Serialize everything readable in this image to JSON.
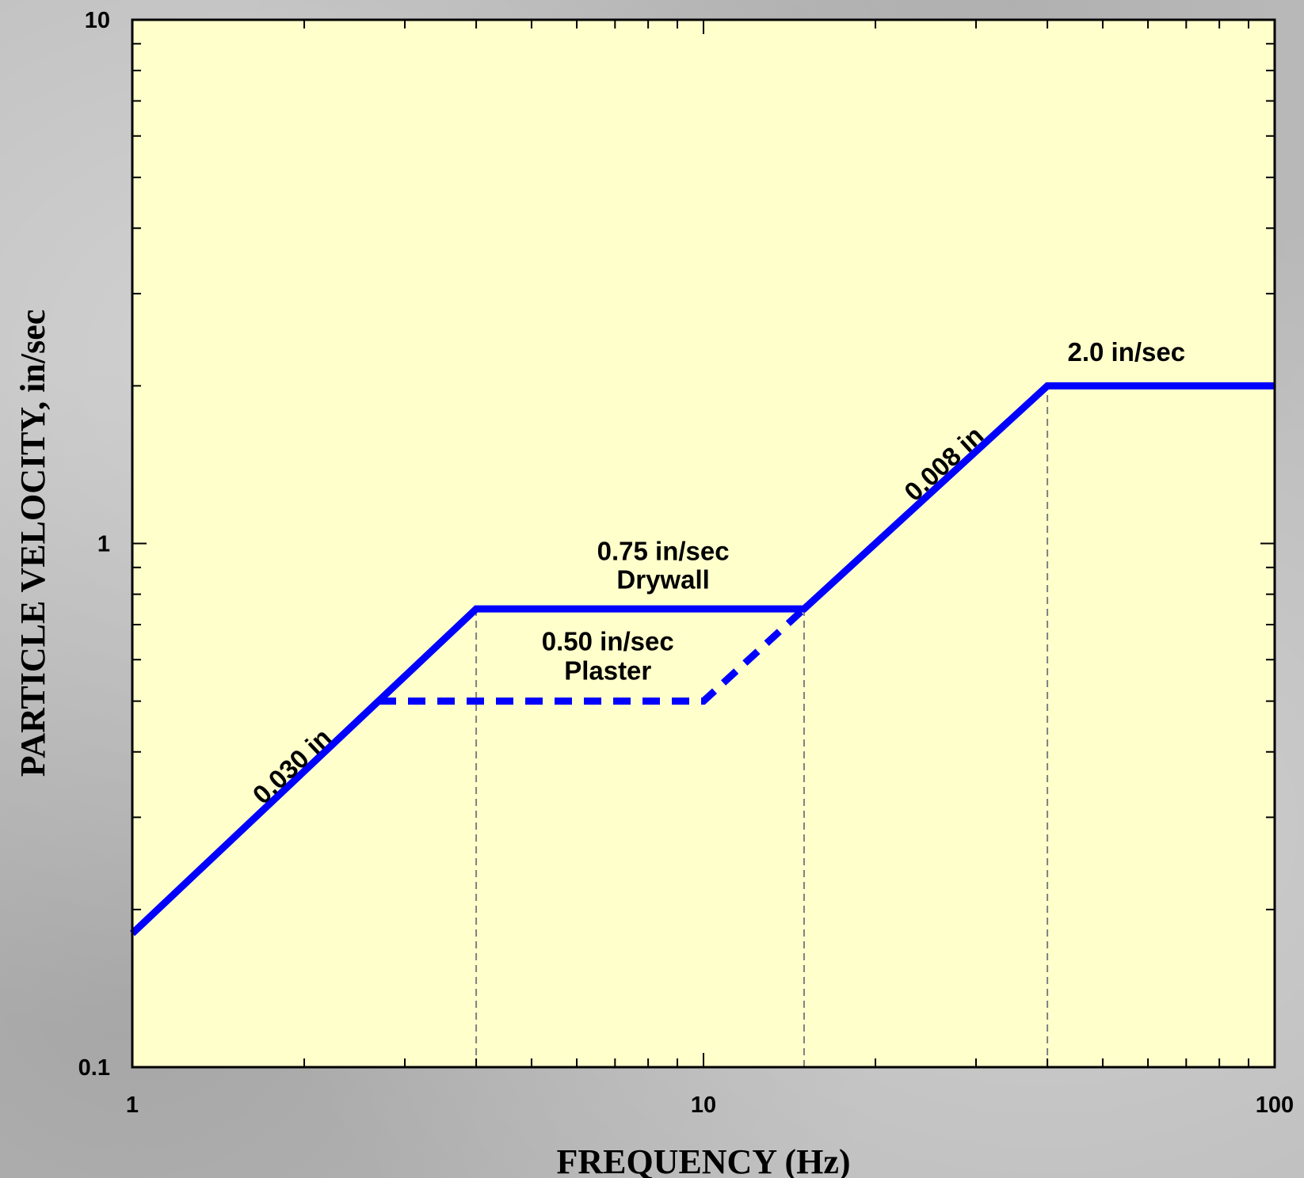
{
  "chart_data": {
    "type": "line",
    "xlabel": "FREQUENCY  (Hz)",
    "ylabel": "PARTICLE VELOCITY,  in/sec",
    "xscale": "log",
    "yscale": "log",
    "xlim": [
      1,
      100
    ],
    "ylim": [
      0.1,
      10
    ],
    "x_ticks": [
      {
        "value": 1,
        "label": "1"
      },
      {
        "value": 10,
        "label": "10"
      },
      {
        "value": 100,
        "label": "100"
      }
    ],
    "y_ticks": [
      {
        "value": 0.1,
        "label": "0.1"
      },
      {
        "value": 1,
        "label": "1"
      },
      {
        "value": 10,
        "label": "10"
      }
    ],
    "series": [
      {
        "style": "solid",
        "color": "#0000ff",
        "x": [
          1,
          4,
          15,
          40,
          100
        ],
        "y": [
          0.18,
          0.75,
          0.75,
          2.0,
          2.0
        ]
      },
      {
        "style": "dashed",
        "color": "#0000ff",
        "x": [
          2.7,
          10,
          15
        ],
        "y": [
          0.5,
          0.5,
          0.75
        ]
      }
    ],
    "reference_lines": [
      {
        "x": 4,
        "y_from": 0.1,
        "y_to": 0.75
      },
      {
        "x": 15,
        "y_from": 0.1,
        "y_to": 0.75
      },
      {
        "x": 40,
        "y_from": 0.1,
        "y_to": 2.0
      }
    ],
    "annotations": [
      {
        "text": "0.030 in",
        "x": 1.95,
        "y": 0.365,
        "rotate_along": [
          [
            1,
            0.18
          ],
          [
            4,
            0.75
          ]
        ]
      },
      {
        "text": "0.008 in",
        "x": 27,
        "y": 1.38,
        "rotate_along": [
          [
            15,
            0.75
          ],
          [
            40,
            2.0
          ]
        ]
      },
      {
        "text": "0.75 in/sec",
        "x": 8.5,
        "y": 0.93
      },
      {
        "text": "Drywall",
        "x": 8.5,
        "y": 0.82
      },
      {
        "text": "0.50 in/sec",
        "x": 6.8,
        "y": 0.625
      },
      {
        "text": "Plaster",
        "x": 6.8,
        "y": 0.55
      },
      {
        "text": "2.0 in/sec",
        "x": 55,
        "y": 2.23
      }
    ],
    "plot_background": "#ffffcc",
    "grid": false
  }
}
